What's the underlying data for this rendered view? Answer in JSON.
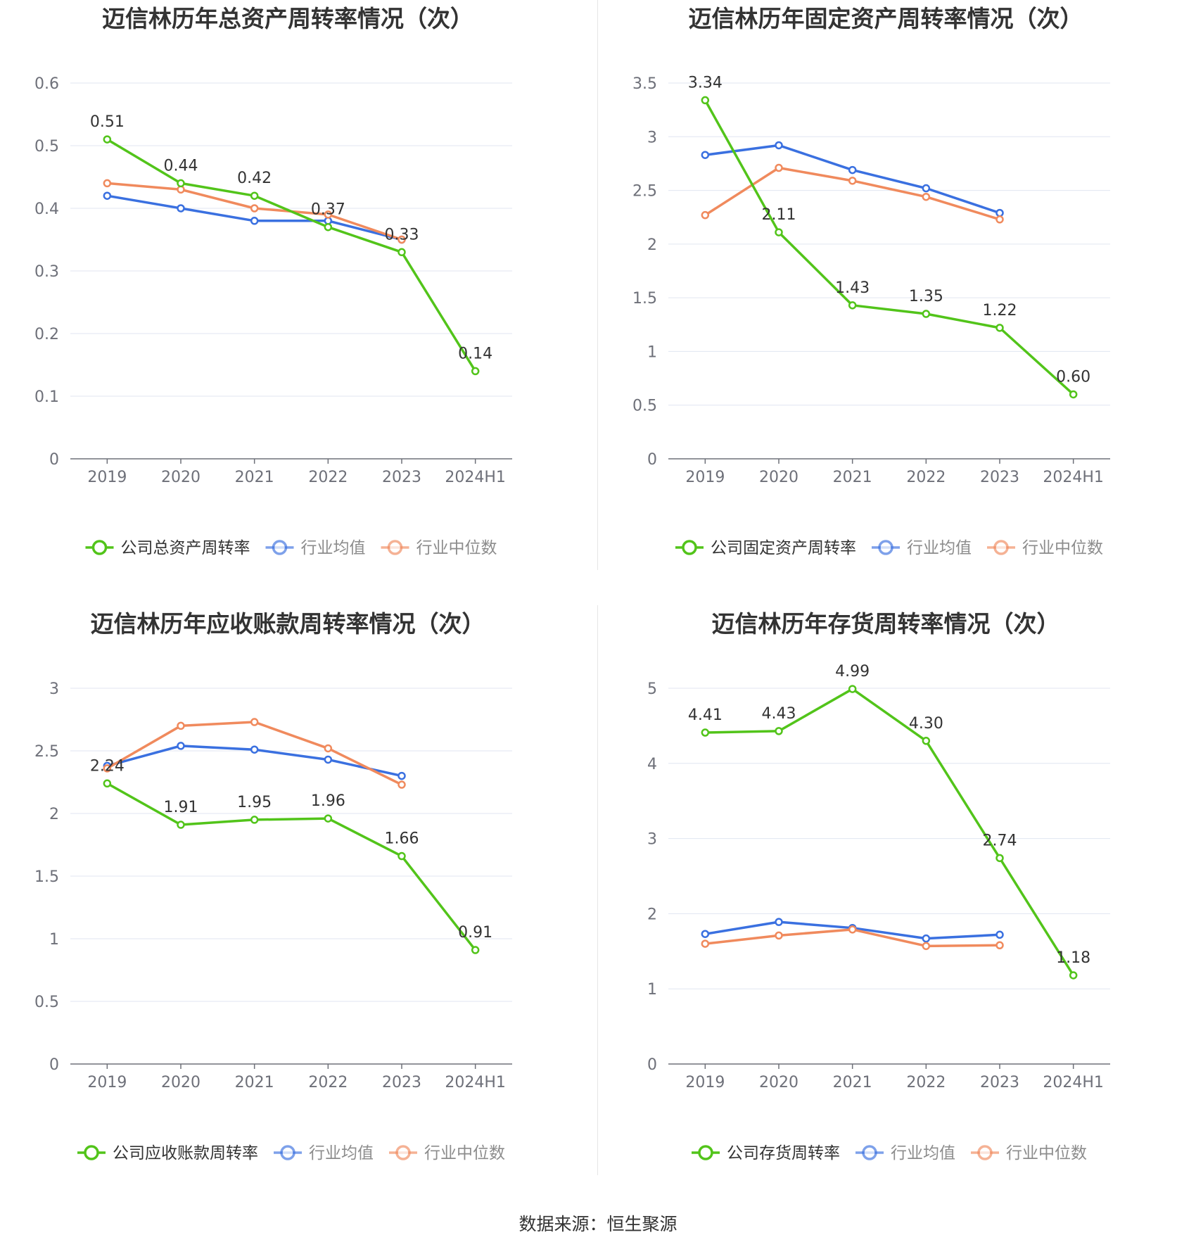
{
  "colors": {
    "company": "#52c41a",
    "avg": "#3a70e0",
    "median": "#f08a5d",
    "grid": "#e0e6f1",
    "axis": "#6e7079"
  },
  "source": "数据来源：恒生聚源",
  "chart_data": [
    {
      "type": "line",
      "title": "迈信林历年总资产周转率情况（次）",
      "categories": [
        "2019",
        "2020",
        "2021",
        "2022",
        "2023",
        "2024H1"
      ],
      "ylim": [
        0,
        0.6
      ],
      "yticks": [
        "0",
        "0.1",
        "0.2",
        "0.3",
        "0.4",
        "0.5",
        "0.6"
      ],
      "grid": true,
      "legend_position": "bottom",
      "series": [
        {
          "name": "公司总资产周转率",
          "role": "company",
          "values": [
            0.51,
            0.44,
            0.42,
            0.37,
            0.33,
            0.14
          ],
          "labels": [
            "0.51",
            "0.44",
            "0.42",
            "0.37",
            "0.33",
            "0.14"
          ]
        },
        {
          "name": "行业均值",
          "role": "avg",
          "values": [
            0.42,
            0.4,
            0.38,
            0.38,
            0.35,
            null
          ]
        },
        {
          "name": "行业中位数",
          "role": "median",
          "values": [
            0.44,
            0.43,
            0.4,
            0.39,
            0.35,
            null
          ]
        }
      ]
    },
    {
      "type": "line",
      "title": "迈信林历年固定资产周转率情况（次）",
      "categories": [
        "2019",
        "2020",
        "2021",
        "2022",
        "2023",
        "2024H1"
      ],
      "ylim": [
        0,
        3.5
      ],
      "yticks": [
        "0",
        "0.5",
        "1",
        "1.5",
        "2",
        "2.5",
        "3",
        "3.5"
      ],
      "grid": true,
      "legend_position": "bottom",
      "series": [
        {
          "name": "公司固定资产周转率",
          "role": "company",
          "values": [
            3.34,
            2.11,
            1.43,
            1.35,
            1.22,
            0.6
          ],
          "labels": [
            "3.34",
            "2.11",
            "1.43",
            "1.35",
            "1.22",
            "0.60"
          ]
        },
        {
          "name": "行业均值",
          "role": "avg",
          "values": [
            2.83,
            2.92,
            2.69,
            2.52,
            2.29,
            null
          ]
        },
        {
          "name": "行业中位数",
          "role": "median",
          "values": [
            2.27,
            2.71,
            2.59,
            2.44,
            2.23,
            null
          ]
        }
      ]
    },
    {
      "type": "line",
      "title": "迈信林历年应收账款周转率情况（次）",
      "categories": [
        "2019",
        "2020",
        "2021",
        "2022",
        "2023",
        "2024H1"
      ],
      "ylim": [
        0,
        3
      ],
      "yticks": [
        "0",
        "0.5",
        "1",
        "1.5",
        "2",
        "2.5",
        "3"
      ],
      "grid": true,
      "legend_position": "bottom",
      "series": [
        {
          "name": "公司应收账款周转率",
          "role": "company",
          "values": [
            2.24,
            1.91,
            1.95,
            1.96,
            1.66,
            0.91
          ],
          "labels": [
            "2.24",
            "1.91",
            "1.95",
            "1.96",
            "1.66",
            "0.91"
          ]
        },
        {
          "name": "行业均值",
          "role": "avg",
          "values": [
            2.38,
            2.54,
            2.51,
            2.43,
            2.3,
            null
          ]
        },
        {
          "name": "行业中位数",
          "role": "median",
          "values": [
            2.36,
            2.7,
            2.73,
            2.52,
            2.23,
            null
          ]
        }
      ]
    },
    {
      "type": "line",
      "title": "迈信林历年存货周转率情况（次）",
      "categories": [
        "2019",
        "2020",
        "2021",
        "2022",
        "2023",
        "2024H1"
      ],
      "ylim": [
        0,
        5
      ],
      "yticks": [
        "0",
        "1",
        "2",
        "3",
        "4",
        "5"
      ],
      "grid": true,
      "legend_position": "bottom",
      "series": [
        {
          "name": "公司存货周转率",
          "role": "company",
          "values": [
            4.41,
            4.43,
            4.99,
            4.3,
            2.74,
            1.18
          ],
          "labels": [
            "4.41",
            "4.43",
            "4.99",
            "4.30",
            "2.74",
            "1.18"
          ]
        },
        {
          "name": "行业均值",
          "role": "avg",
          "values": [
            1.73,
            1.89,
            1.81,
            1.67,
            1.72,
            null
          ]
        },
        {
          "name": "行业中位数",
          "role": "median",
          "values": [
            1.6,
            1.71,
            1.79,
            1.57,
            1.58,
            null
          ]
        }
      ]
    }
  ]
}
